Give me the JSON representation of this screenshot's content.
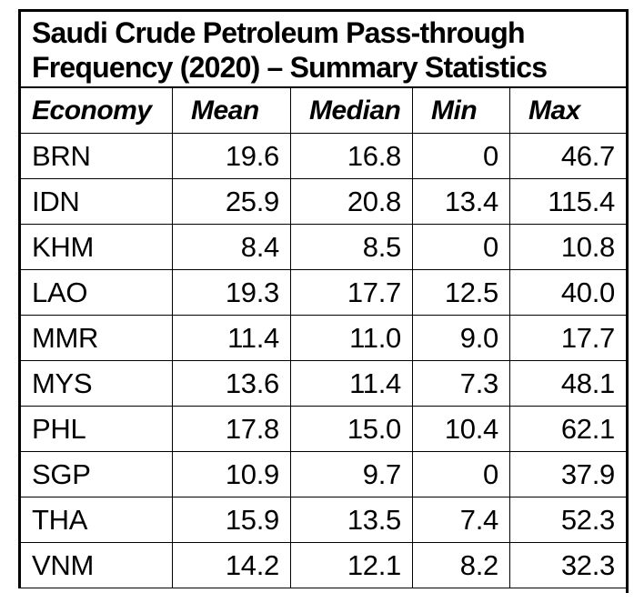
{
  "title_lines": [
    "Saudi Crude Petroleum Pass-through",
    "Frequency (2020) – Summary Statistics"
  ],
  "chart_data": {
    "type": "table",
    "title": "Saudi Crude Petroleum Pass-through Frequency (2020) – Summary Statistics",
    "columns": [
      "Economy",
      "Mean",
      "Median",
      "Min",
      "Max"
    ],
    "rows": [
      [
        "BRN",
        "19.6",
        "16.8",
        "0",
        "46.7"
      ],
      [
        "IDN",
        "25.9",
        "20.8",
        "13.4",
        "115.4"
      ],
      [
        "KHM",
        "8.4",
        "8.5",
        "0",
        "10.8"
      ],
      [
        "LAO",
        "19.3",
        "17.7",
        "12.5",
        "40.0"
      ],
      [
        "MMR",
        "11.4",
        "11.0",
        "9.0",
        "17.7"
      ],
      [
        "MYS",
        "13.6",
        "11.4",
        "7.3",
        "48.1"
      ],
      [
        "PHL",
        "17.8",
        "15.0",
        "10.4",
        "62.1"
      ],
      [
        "SGP",
        "10.9",
        "9.7",
        "0",
        "37.9"
      ],
      [
        "THA",
        "15.9",
        "13.5",
        "7.4",
        "52.3"
      ],
      [
        "VNM",
        "14.2",
        "12.1",
        "8.2",
        "32.3"
      ]
    ]
  },
  "colors": {
    "text": "#000000",
    "line": "#000000",
    "background": "#ffffff"
  }
}
